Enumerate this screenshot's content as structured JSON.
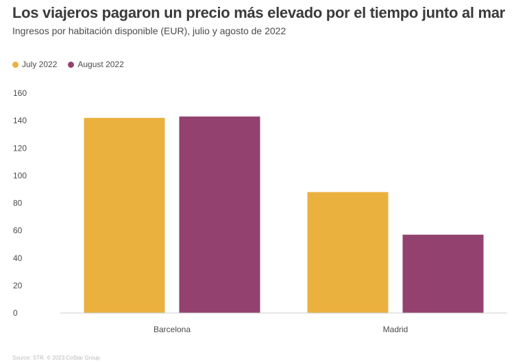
{
  "header": {
    "title": "Los viajeros pagaron un precio más elevado por el tiempo junto al mar",
    "subtitle": "Ingresos por habitación disponible (EUR), julio y agosto de 2022"
  },
  "source": "Source: STR. © 2023 CoStar Group",
  "colors": {
    "July 2022": "#EBB13F",
    "August 2022": "#93426F",
    "axis": "#cccccc"
  },
  "chart_data": {
    "type": "bar",
    "title": "Los viajeros pagaron un precio más elevado por el tiempo junto al mar",
    "subtitle": "Ingresos por habitación disponible (EUR), julio y agosto de 2022",
    "categories": [
      "Barcelona",
      "Madrid"
    ],
    "series": [
      {
        "name": "July 2022",
        "values": [
          142,
          88
        ]
      },
      {
        "name": "August 2022",
        "values": [
          143,
          57
        ]
      }
    ],
    "ylim": [
      0,
      160
    ],
    "yticks": [
      0,
      20,
      40,
      60,
      80,
      100,
      120,
      140,
      160
    ],
    "xlabel": "",
    "ylabel": "",
    "grid": false,
    "legend_position": "top-left"
  }
}
